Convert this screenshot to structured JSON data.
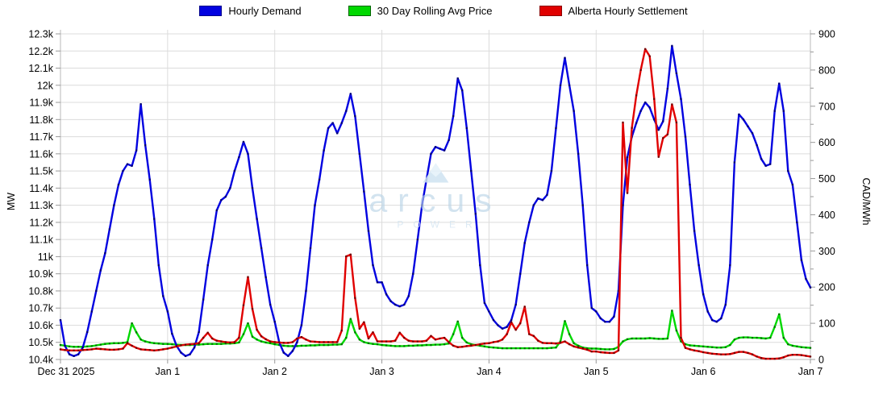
{
  "legend": {
    "items": [
      {
        "label": "Hourly Demand",
        "color": "#0202e0",
        "border": "#00008b"
      },
      {
        "label": "30 Day Rolling Avg Price",
        "color": "#00d800",
        "border": "#006400"
      },
      {
        "label": "Alberta Hourly Settlement",
        "color": "#e00000",
        "border": "#8b0000"
      }
    ]
  },
  "watermark": {
    "brand": "arcus",
    "sub": "POWER"
  },
  "axes": {
    "left_title": "MW",
    "right_title": "CAD/MWh"
  },
  "chart_data": {
    "type": "line",
    "title": "",
    "x_unit": "hours since Dec 31 2025 00:00",
    "hours_total": 168,
    "grid": true,
    "legend_position": "top",
    "x_tick_labels": [
      "Dec 31 2025",
      "Jan 1",
      "Jan 2",
      "Jan 3",
      "Jan 4",
      "Jan 5",
      "Jan 6",
      "Jan 7"
    ],
    "left_axis": {
      "label": "MW",
      "min": 10400,
      "max": 12300,
      "step": 100,
      "tick_labels": [
        "10.4k",
        "10.5k",
        "10.6k",
        "10.7k",
        "10.8k",
        "10.9k",
        "11k",
        "11.1k",
        "11.2k",
        "11.3k",
        "11.4k",
        "11.5k",
        "11.6k",
        "11.7k",
        "11.8k",
        "11.9k",
        "12k",
        "12.1k",
        "12.2k",
        "12.3k"
      ]
    },
    "right_axis": {
      "label": "CAD/MWh",
      "min": 0,
      "max": 900,
      "step": 100,
      "minor_step": 50,
      "tick_labels": [
        "0",
        "100",
        "200",
        "300",
        "400",
        "500",
        "600",
        "700",
        "800",
        "900"
      ]
    },
    "series": [
      {
        "name": "Hourly Demand",
        "axis": "left",
        "color": "#0202e0",
        "marker_color": "#00006b",
        "values": [
          10630,
          10480,
          10430,
          10420,
          10430,
          10470,
          10560,
          10680,
          10800,
          10920,
          11020,
          11160,
          11300,
          11420,
          11500,
          11540,
          11530,
          11620,
          11890,
          11650,
          11450,
          11220,
          10950,
          10770,
          10680,
          10550,
          10480,
          10440,
          10420,
          10430,
          10470,
          10560,
          10750,
          10950,
          11100,
          11270,
          11330,
          11350,
          11400,
          11500,
          11580,
          11670,
          11600,
          11400,
          11220,
          11050,
          10880,
          10720,
          10620,
          10500,
          10440,
          10420,
          10450,
          10500,
          10600,
          10800,
          11050,
          11300,
          11450,
          11620,
          11750,
          11780,
          11720,
          11780,
          11850,
          11950,
          11820,
          11600,
          11380,
          11150,
          10950,
          10850,
          10850,
          10780,
          10740,
          10720,
          10710,
          10720,
          10770,
          10900,
          11100,
          11300,
          11450,
          11600,
          11640,
          11630,
          11620,
          11680,
          11820,
          12040,
          11970,
          11750,
          11500,
          11250,
          10950,
          10730,
          10680,
          10630,
          10600,
          10580,
          10590,
          10630,
          10720,
          10900,
          11080,
          11200,
          11300,
          11340,
          11330,
          11360,
          11500,
          11750,
          12000,
          12160,
          12000,
          11850,
          11600,
          11300,
          10950,
          10700,
          10680,
          10640,
          10620,
          10620,
          10650,
          10800,
          11300,
          11580,
          11700,
          11780,
          11850,
          11900,
          11870,
          11800,
          11740,
          11790,
          11980,
          12230,
          12070,
          11920,
          11700,
          11420,
          11150,
          10950,
          10780,
          10680,
          10630,
          10620,
          10640,
          10720,
          10950,
          11550,
          11830,
          11800,
          11760,
          11720,
          11650,
          11570,
          11530,
          11540,
          11850,
          12010,
          11850,
          11500,
          11420,
          11200,
          10980,
          10870,
          10820
        ]
      },
      {
        "name": "30 Day Rolling Avg Price",
        "axis": "right",
        "color": "#00d800",
        "marker_color": "#006b00",
        "values": [
          40,
          38,
          36,
          35,
          35,
          35,
          36,
          37,
          39,
          41,
          43,
          44,
          45,
          45,
          46,
          48,
          100,
          75,
          55,
          50,
          47,
          45,
          44,
          43,
          43,
          42,
          41,
          40,
          40,
          40,
          41,
          41,
          42,
          43,
          43,
          43,
          43,
          44,
          44,
          45,
          47,
          70,
          100,
          63,
          55,
          50,
          47,
          45,
          42,
          40,
          38,
          37,
          37,
          37,
          38,
          38,
          39,
          39,
          40,
          40,
          40,
          41,
          41,
          42,
          60,
          112,
          75,
          55,
          48,
          45,
          43,
          42,
          40,
          39,
          38,
          37,
          37,
          37,
          38,
          38,
          39,
          39,
          40,
          40,
          41,
          41,
          42,
          44,
          70,
          105,
          60,
          47,
          42,
          40,
          38,
          36,
          34,
          33,
          32,
          31,
          31,
          31,
          31,
          31,
          31,
          31,
          31,
          31,
          31,
          31,
          32,
          33,
          50,
          106,
          70,
          45,
          38,
          33,
          31,
          30,
          30,
          29,
          28,
          28,
          29,
          35,
          50,
          56,
          58,
          58,
          58,
          58,
          59,
          58,
          57,
          57,
          58,
          135,
          80,
          50,
          42,
          39,
          38,
          37,
          36,
          35,
          34,
          33,
          33,
          34,
          40,
          55,
          60,
          61,
          61,
          60,
          60,
          59,
          58,
          60,
          90,
          125,
          60,
          42,
          38,
          36,
          34,
          33,
          32
        ]
      },
      {
        "name": "Alberta Hourly Settlement",
        "axis": "right",
        "color": "#e00000",
        "marker_color": "#6b0000",
        "values": [
          28,
          26,
          25,
          25,
          25,
          26,
          27,
          28,
          30,
          29,
          28,
          27,
          27,
          28,
          30,
          45,
          38,
          32,
          28,
          27,
          26,
          25,
          26,
          28,
          30,
          33,
          36,
          39,
          41,
          42,
          43,
          45,
          60,
          74,
          58,
          52,
          50,
          48,
          47,
          48,
          60,
          150,
          228,
          140,
          82,
          64,
          56,
          50,
          48,
          47,
          46,
          46,
          48,
          58,
          62,
          55,
          50,
          49,
          48,
          48,
          48,
          48,
          48,
          80,
          285,
          290,
          170,
          85,
          103,
          58,
          75,
          50,
          50,
          50,
          50,
          52,
          74,
          60,
          52,
          50,
          50,
          50,
          52,
          65,
          55,
          58,
          60,
          48,
          38,
          34,
          35,
          37,
          38,
          40,
          42,
          44,
          45,
          48,
          50,
          55,
          70,
          103,
          82,
          100,
          146,
          70,
          65,
          52,
          46,
          45,
          45,
          44,
          46,
          50,
          42,
          36,
          33,
          30,
          27,
          22,
          22,
          20,
          19,
          18,
          18,
          25,
          655,
          460,
          640,
          730,
          800,
          858,
          838,
          720,
          560,
          612,
          622,
          705,
          655,
          60,
          32,
          28,
          25,
          23,
          20,
          18,
          16,
          15,
          14,
          14,
          15,
          18,
          21,
          21,
          18,
          14,
          8,
          4,
          2,
          2,
          2,
          3,
          6,
          11,
          13,
          13,
          12,
          10,
          8
        ]
      }
    ]
  }
}
